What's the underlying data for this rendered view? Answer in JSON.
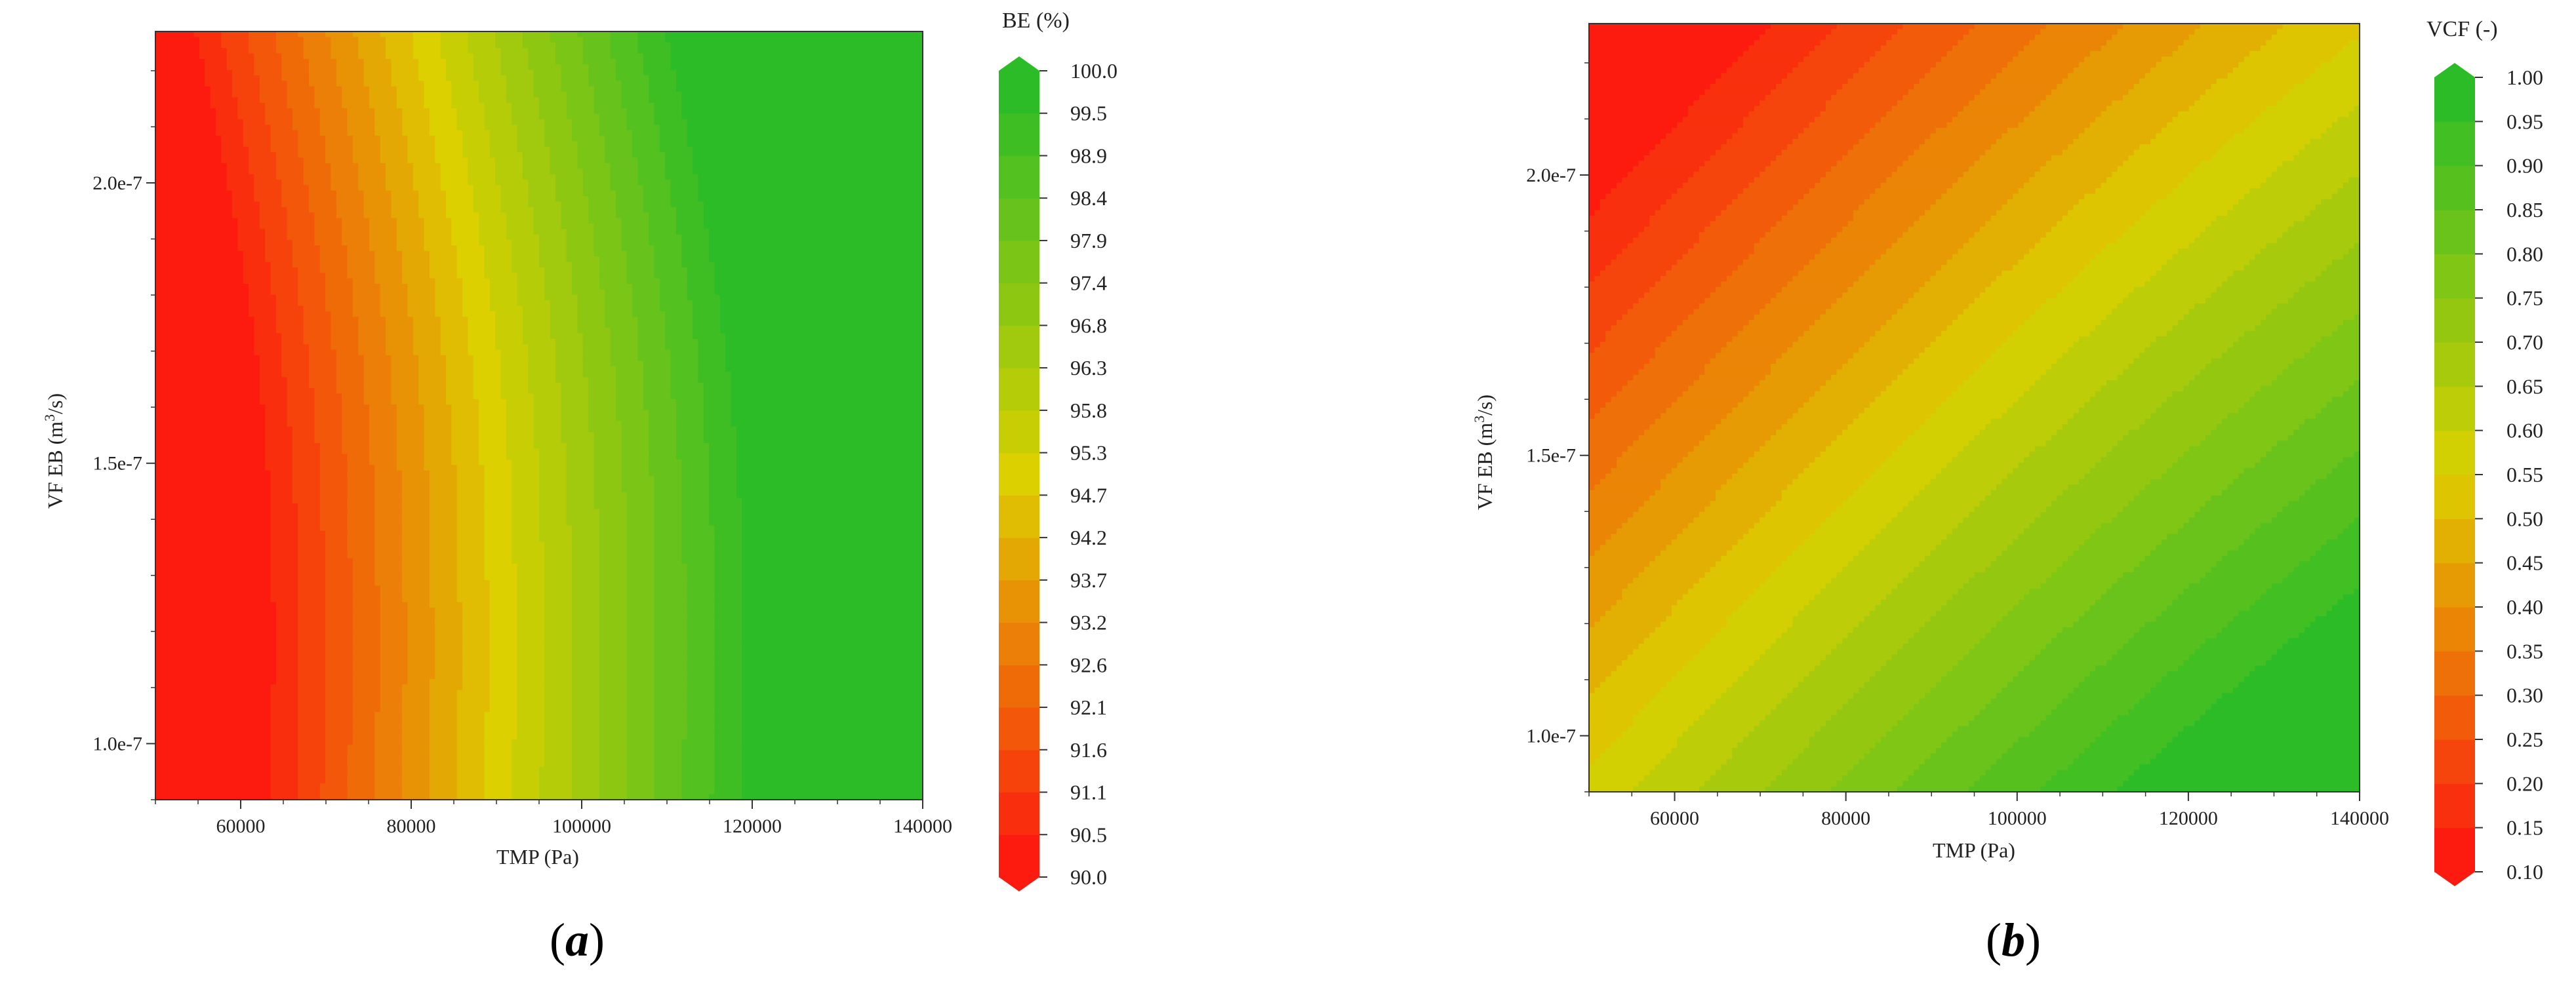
{
  "chart_data": [
    {
      "type": "heatmap",
      "panel_label": "(a)",
      "panel_label_letter": "a",
      "xlabel": "TMP (Pa)",
      "ylabel_prefix": "VF EB (m",
      "ylabel_sup": "3",
      "ylabel_suffix": "/s)",
      "xlim": [
        50000,
        140000
      ],
      "ylim": [
        9e-08,
        2.27e-07
      ],
      "xticks": [
        60000,
        80000,
        100000,
        120000,
        140000
      ],
      "xtick_labels": [
        "60000",
        "80000",
        "100000",
        "120000",
        "140000"
      ],
      "yticks": [
        1e-07,
        1.5e-07,
        2e-07
      ],
      "ytick_labels": [
        "1.0e-7",
        "1.5e-7",
        "2.0e-7"
      ],
      "colorbar": {
        "title": "BE (%)",
        "levels": [
          90.0,
          90.5,
          91.1,
          91.6,
          92.1,
          92.6,
          93.2,
          93.7,
          94.2,
          94.7,
          95.3,
          95.8,
          96.3,
          96.8,
          97.4,
          97.9,
          98.4,
          98.9,
          99.5,
          100.0
        ],
        "level_labels": [
          "90.0",
          "90.5",
          "91.1",
          "91.6",
          "92.1",
          "92.6",
          "93.2",
          "93.7",
          "94.2",
          "94.7",
          "95.3",
          "95.8",
          "96.3",
          "96.8",
          "97.4",
          "97.9",
          "98.4",
          "98.9",
          "99.5",
          "100.0"
        ],
        "colormap": "red-yellow-green"
      },
      "field": {
        "description_of_trend": "BE increases with TMP; contours nearly vertical, shifting toward lower TMP as VF EB increases",
        "anchors": [
          {
            "TMP": 50000,
            "VF": 1e-07,
            "BE": 90.0
          },
          {
            "TMP": 70000,
            "VF": 1e-07,
            "BE": 90.9
          },
          {
            "TMP": 95000,
            "VF": 1e-07,
            "BE": 95.2
          },
          {
            "TMP": 120000,
            "VF": 1e-07,
            "BE": 99.6
          },
          {
            "TMP": 140000,
            "VF": 1e-07,
            "BE": 100.0
          },
          {
            "TMP": 60000,
            "VF": 2.2e-07,
            "BE": 92.2
          },
          {
            "TMP": 90000,
            "VF": 2.2e-07,
            "BE": 95.4
          },
          {
            "TMP": 130000,
            "VF": 2.2e-07,
            "BE": 99.8
          }
        ]
      }
    },
    {
      "type": "heatmap",
      "panel_label": "(b)",
      "panel_label_letter": "b",
      "xlabel": "TMP (Pa)",
      "ylabel_prefix": "VF EB (m",
      "ylabel_sup": "3",
      "ylabel_suffix": "/s)",
      "xlim": [
        50000,
        140000
      ],
      "ylim": [
        9e-08,
        2.27e-07
      ],
      "xticks": [
        60000,
        80000,
        100000,
        120000,
        140000
      ],
      "xtick_labels": [
        "60000",
        "80000",
        "100000",
        "120000",
        "140000"
      ],
      "yticks": [
        1e-07,
        1.5e-07,
        2e-07
      ],
      "ytick_labels": [
        "1.0e-7",
        "1.5e-7",
        "2.0e-7"
      ],
      "colorbar": {
        "title": "VCF (-)",
        "levels": [
          0.1,
          0.15,
          0.2,
          0.25,
          0.3,
          0.35,
          0.4,
          0.45,
          0.5,
          0.55,
          0.6,
          0.65,
          0.7,
          0.75,
          0.8,
          0.85,
          0.9,
          0.95,
          1.0
        ],
        "level_labels": [
          "0.10",
          "0.15",
          "0.20",
          "0.25",
          "0.30",
          "0.35",
          "0.40",
          "0.45",
          "0.50",
          "0.55",
          "0.60",
          "0.65",
          "0.70",
          "0.75",
          "0.80",
          "0.85",
          "0.90",
          "0.95",
          "1.00"
        ],
        "colormap": "red-yellow-green"
      },
      "field": {
        "description_of_trend": "VCF increases with TMP and decreases with VF EB; diagonal contours",
        "anchors": [
          {
            "TMP": 50000,
            "VF": 2.27e-07,
            "BE": 0.1
          },
          {
            "TMP": 50000,
            "VF": 9e-08,
            "BE": 0.5
          },
          {
            "TMP": 140000,
            "VF": 2.27e-07,
            "BE": 0.45
          },
          {
            "TMP": 140000,
            "VF": 9e-08,
            "BE": 0.95
          },
          {
            "TMP": 95000,
            "VF": 1.6e-07,
            "BE": 0.55
          }
        ]
      }
    }
  ],
  "colors": {
    "low": "#ff1010",
    "mid": "#dcd000",
    "high": "#22bb2a"
  }
}
